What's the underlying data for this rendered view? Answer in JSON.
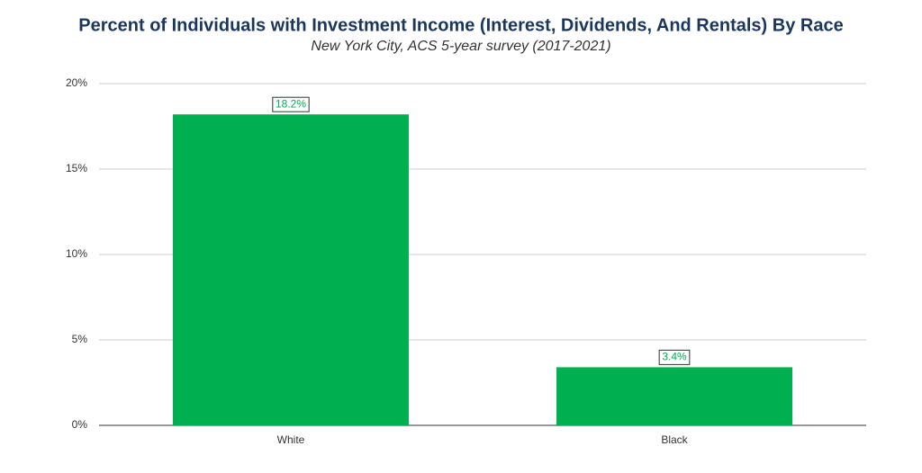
{
  "chart_data": {
    "type": "bar",
    "title": "Percent of Individuals with Investment Income (Interest, Dividends, And Rentals) By Race",
    "subtitle": "New York City, ACS 5-year survey (2017-2021)",
    "categories": [
      "White",
      "Black"
    ],
    "values": [
      18.2,
      3.4
    ],
    "value_labels": [
      "18.2%",
      "3.4%"
    ],
    "color": "#00b050",
    "ylim": [
      0,
      20
    ],
    "yticks": [
      {
        "value": 0,
        "label": "0%"
      },
      {
        "value": 5,
        "label": "5%"
      },
      {
        "value": 10,
        "label": "10%"
      },
      {
        "value": 15,
        "label": "15%"
      },
      {
        "value": 20,
        "label": "20%"
      }
    ],
    "grid": true
  }
}
